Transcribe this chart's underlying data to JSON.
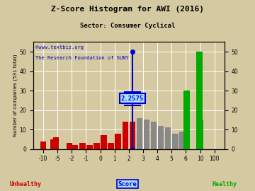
{
  "title": "Z-Score Histogram for AWI (2016)",
  "subtitle": "Sector: Consumer Cyclical",
  "xlabel": "Score",
  "ylabel": "Number of companies (531 total)",
  "zscore": 2.2575,
  "zscore_label": "2.2575",
  "watermark1": "©www.textbiz.org",
  "watermark2": "The Research Foundation of SUNY",
  "unhealthy_label": "Unhealthy",
  "healthy_label": "Healthy",
  "background_color": "#d4c9a0",
  "bar_color_red": "#cc0000",
  "bar_color_gray": "#888888",
  "bar_color_green": "#00aa00",
  "title_color": "#000000",
  "zscore_line_color": "#0000cc",
  "zscore_box_color": "#aaddff",
  "yticks": [
    0,
    10,
    20,
    30,
    40,
    50
  ],
  "ylim": [
    0,
    55
  ],
  "score_pts": [
    -10,
    -5,
    -2,
    -1,
    0,
    1,
    2,
    3,
    4,
    5,
    6,
    10,
    100
  ],
  "pos_pts": [
    0,
    1,
    2,
    3,
    4,
    5,
    6,
    7,
    8,
    9,
    10,
    11,
    12
  ],
  "tick_pos": [
    0,
    1,
    2,
    3,
    4,
    5,
    6,
    7,
    8,
    9,
    10,
    11,
    12
  ],
  "tick_lab": [
    "-10",
    "-5",
    "-2",
    "-1",
    "0",
    "1",
    "2",
    "3",
    "4",
    "5",
    "6",
    "10",
    "100"
  ],
  "bar_defs": [
    [
      -13.0,
      4,
      "#cc0000"
    ],
    [
      -6.5,
      5,
      "#cc0000"
    ],
    [
      -5.5,
      6,
      "#cc0000"
    ],
    [
      -2.5,
      3,
      "#cc0000"
    ],
    [
      -1.75,
      2,
      "#cc0000"
    ],
    [
      -1.25,
      3,
      "#cc0000"
    ],
    [
      -0.75,
      2,
      "#cc0000"
    ],
    [
      -0.25,
      3,
      "#cc0000"
    ],
    [
      0.25,
      7,
      "#cc0000"
    ],
    [
      0.75,
      3,
      "#cc0000"
    ],
    [
      1.25,
      8,
      "#cc0000"
    ],
    [
      1.75,
      14,
      "#cc0000"
    ],
    [
      2.25,
      14,
      "#cc0000"
    ],
    [
      2.75,
      16,
      "#888888"
    ],
    [
      3.25,
      15,
      "#888888"
    ],
    [
      3.75,
      14,
      "#888888"
    ],
    [
      4.25,
      12,
      "#888888"
    ],
    [
      4.75,
      11,
      "#888888"
    ],
    [
      5.25,
      8,
      "#888888"
    ],
    [
      5.75,
      9,
      "#888888"
    ],
    [
      6.25,
      30,
      "#00aa00"
    ],
    [
      9.75,
      50,
      "#00aa00"
    ],
    [
      11.75,
      15,
      "#00aa00"
    ]
  ]
}
